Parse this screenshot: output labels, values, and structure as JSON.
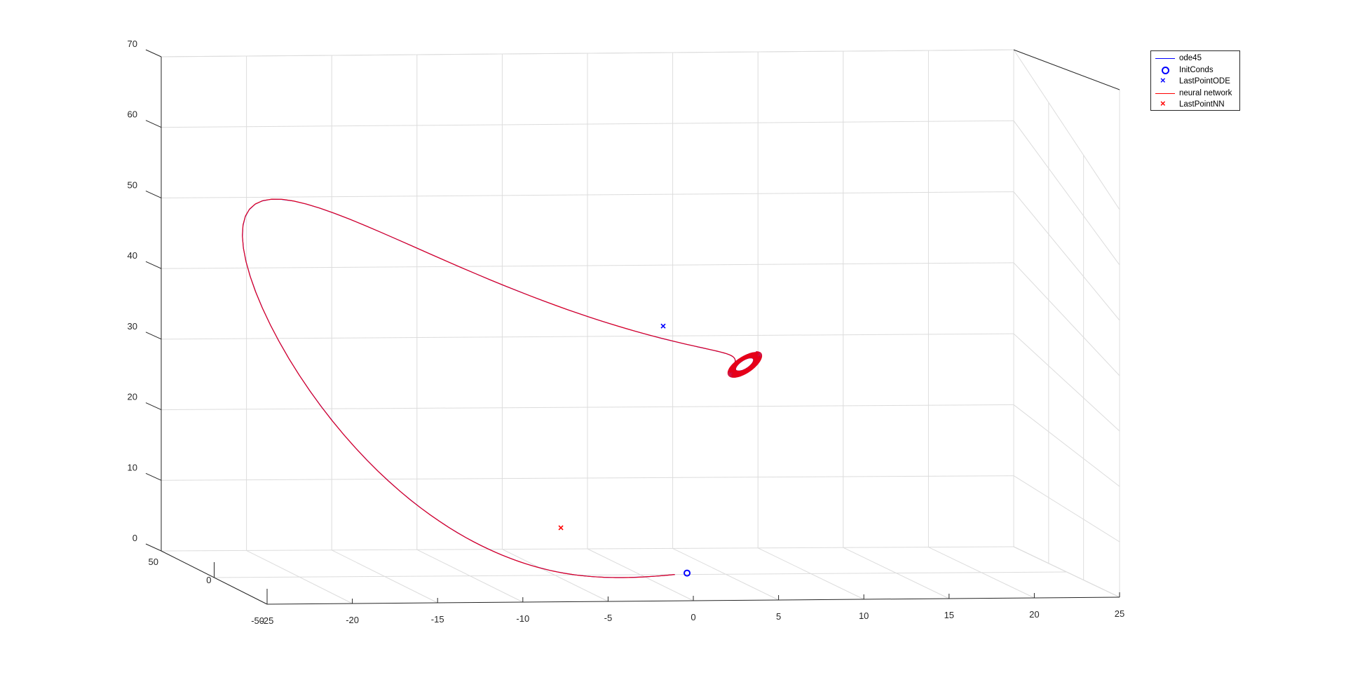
{
  "chart_data": {
    "type": "line",
    "title": "",
    "xlabel": "",
    "ylabel": "",
    "zlabel": "",
    "view": "3d",
    "grid": true,
    "legend_placement": "top-right",
    "xlim": [
      -25,
      25
    ],
    "ylim": [
      -50,
      50
    ],
    "zlim": [
      0,
      70
    ],
    "x_ticks": [
      "-25",
      "-20",
      "-15",
      "-10",
      "-5",
      "0",
      "5",
      "10",
      "15",
      "20",
      "25"
    ],
    "y_ticks": [
      "-50",
      "0",
      "50"
    ],
    "z_ticks": [
      "0",
      "10",
      "20",
      "30",
      "40",
      "50",
      "60",
      "70"
    ],
    "series": [
      {
        "name": "ode45",
        "kind": "line",
        "color": "#0000ff",
        "description_points": [
          [
            5.1,
            -2.5
          ],
          [
            20,
            56
          ],
          [
            10,
            38
          ],
          [
            6,
            24
          ],
          [
            4,
            32
          ]
        ]
      },
      {
        "name": "InitConds",
        "kind": "marker",
        "marker": "circle",
        "color": "#0000ff",
        "points": [
          [
            5.1,
            -2.5
          ]
        ]
      },
      {
        "name": "LastPointODE",
        "kind": "marker",
        "marker": "x",
        "color": "#0000ff",
        "points": [
          [
            3.7,
            32.5
          ]
        ]
      },
      {
        "name": "neural network",
        "kind": "line",
        "color": "#ff0000"
      },
      {
        "name": "LastPointNN",
        "kind": "marker",
        "marker": "x",
        "color": "#ff0000",
        "points": [
          [
            -2.3,
            4.0
          ]
        ]
      }
    ],
    "colors": {
      "ode45": "#0000ff",
      "nn": "#ff0000",
      "axis": "#262626",
      "grid": "#dcdcdc"
    }
  }
}
